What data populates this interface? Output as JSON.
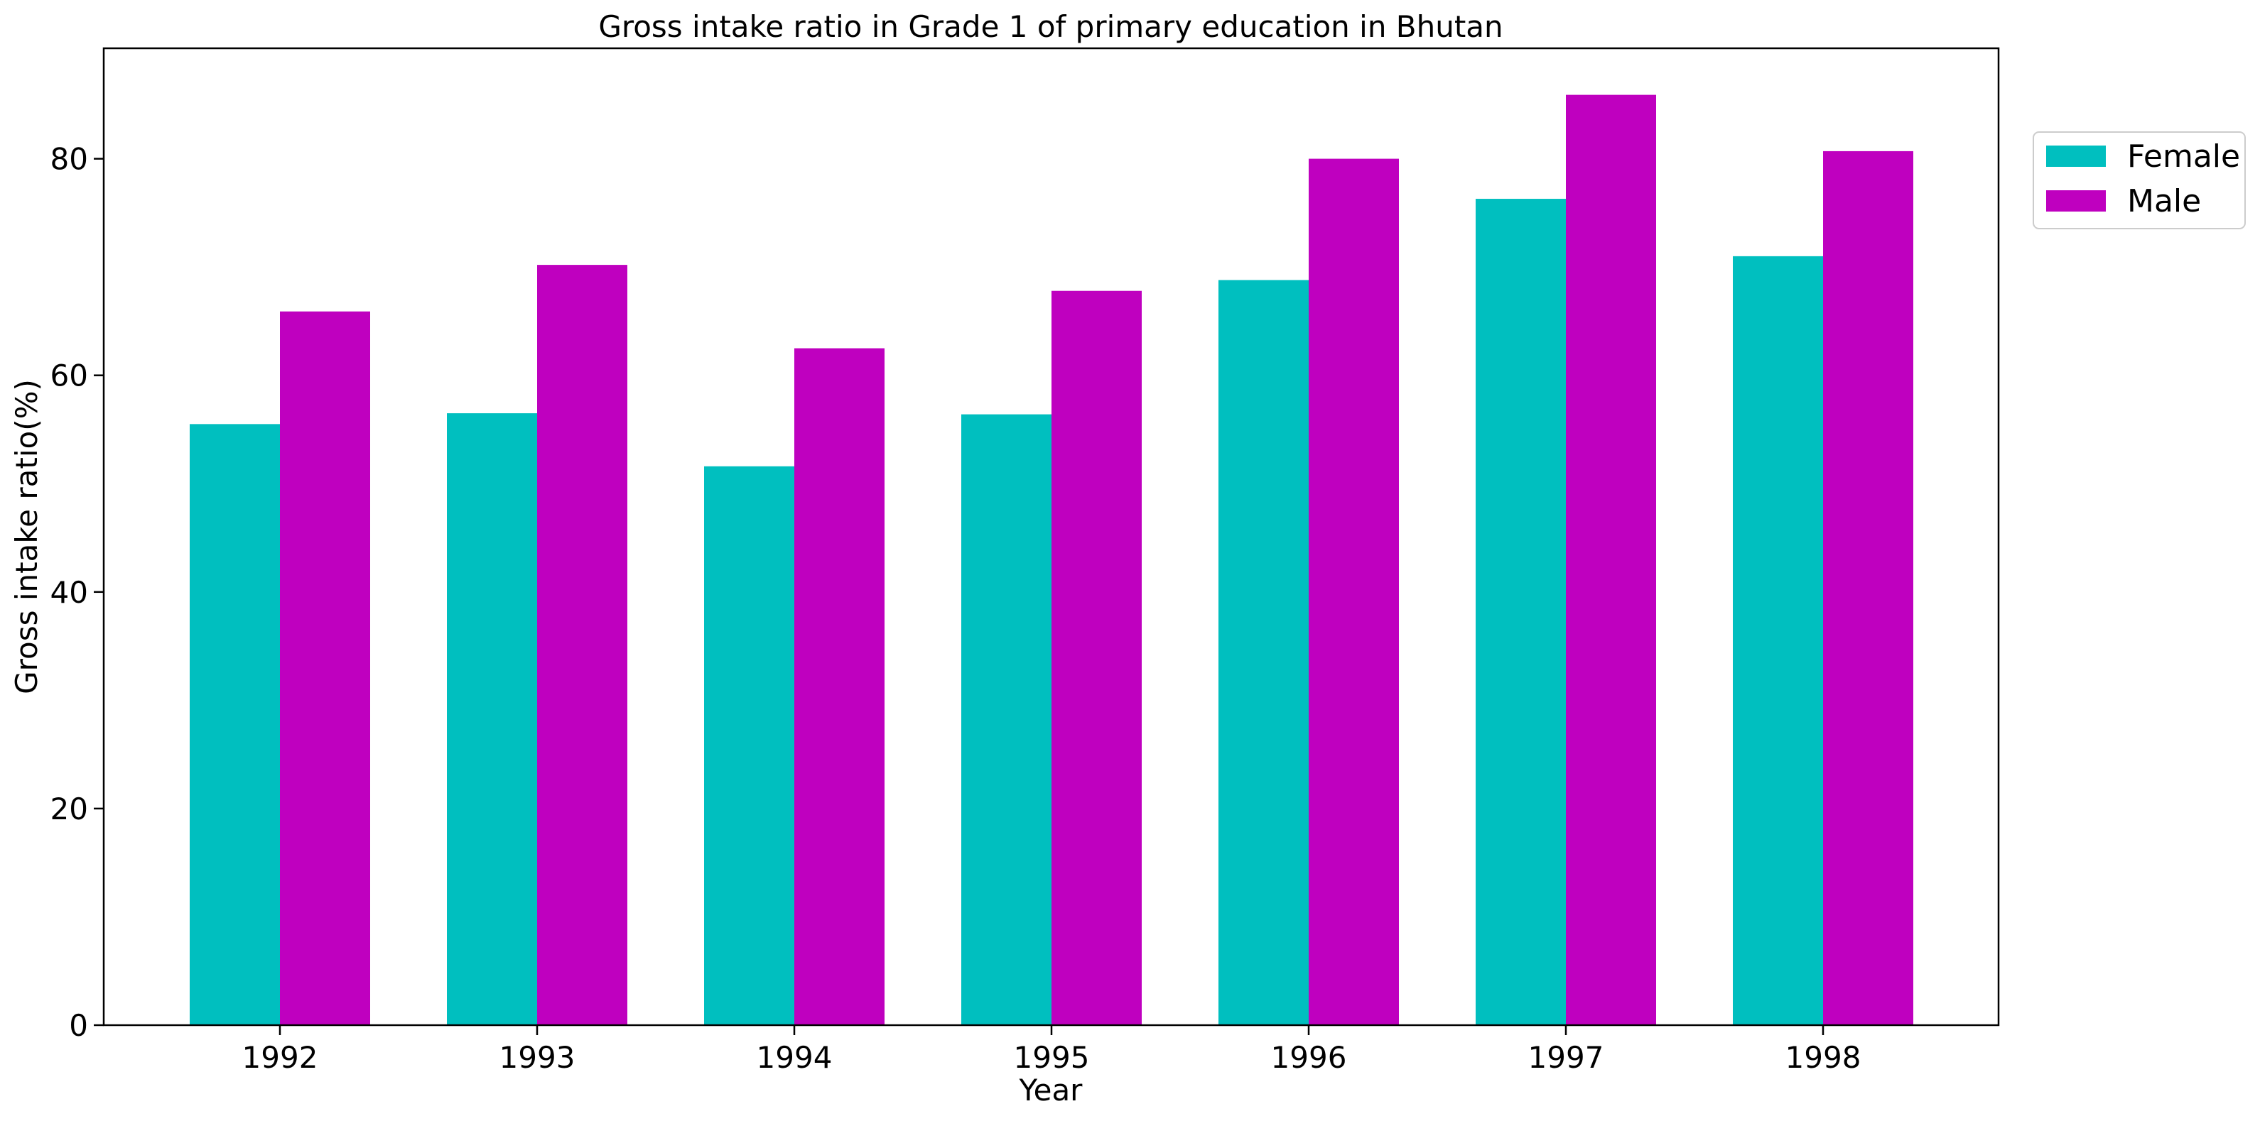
{
  "chart_data": {
    "type": "bar",
    "title": "Gross intake ratio in Grade 1 of primary education in Bhutan",
    "xlabel": "Year",
    "ylabel": "Gross intake ratio(%)",
    "categories": [
      "1992",
      "1993",
      "1994",
      "1995",
      "1996",
      "1997",
      "1998"
    ],
    "series": [
      {
        "name": "Female",
        "color": "#00bfbf",
        "values": [
          55.5,
          56.5,
          51.6,
          56.4,
          68.8,
          76.3,
          71.0
        ]
      },
      {
        "name": "Male",
        "color": "#bf00bf",
        "values": [
          65.9,
          70.2,
          62.5,
          67.8,
          80.0,
          85.9,
          80.7
        ]
      }
    ],
    "ylim": [
      0,
      90.2
    ],
    "yticks": [
      0,
      20,
      40,
      60,
      80
    ],
    "grid": false,
    "legend_position": "outside-top-right"
  }
}
